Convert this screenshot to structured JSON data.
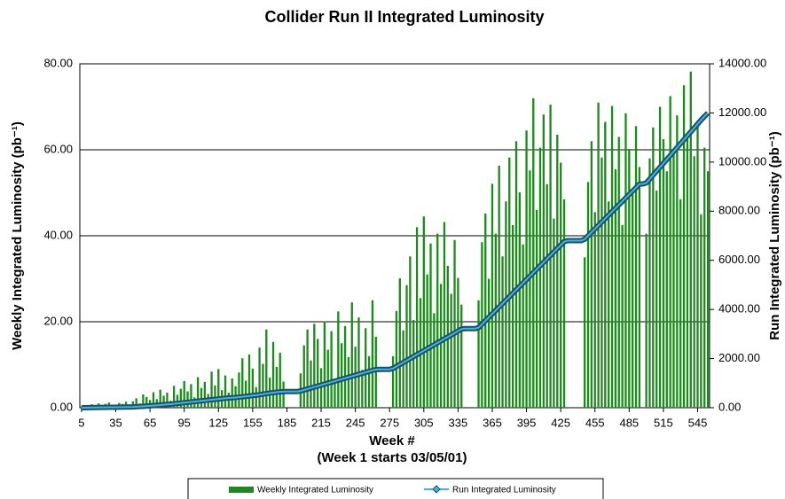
{
  "chart_data": {
    "type": "bar-line",
    "title": "Collider Run II Integrated Luminosity",
    "x_label": "Week #",
    "x_sublabel": "(Week 1 starts 03/05/01)",
    "y_label": "Weekly Integrated Luminosity (pb⁻¹)",
    "y2_label": "Run Integrated Luminosity (pb⁻¹)",
    "categories": [
      "5",
      null,
      null,
      null,
      null,
      null,
      null,
      null,
      null,
      null,
      "35",
      null,
      null,
      null,
      null,
      null,
      null,
      null,
      null,
      null,
      "65",
      null,
      null,
      null,
      null,
      null,
      null,
      null,
      null,
      null,
      "95",
      null,
      null,
      null,
      null,
      null,
      null,
      null,
      null,
      null,
      "125",
      null,
      null,
      null,
      null,
      null,
      null,
      null,
      null,
      null,
      "155",
      null,
      null,
      null,
      null,
      null,
      null,
      null,
      null,
      null,
      "185",
      null,
      null,
      null,
      null,
      null,
      null,
      null,
      null,
      null,
      "215",
      null,
      null,
      null,
      null,
      null,
      null,
      null,
      null,
      null,
      "245",
      null,
      null,
      null,
      null,
      null,
      null,
      null,
      null,
      null,
      "275",
      null,
      null,
      null,
      null,
      null,
      null,
      null,
      null,
      null,
      "305",
      null,
      null,
      null,
      null,
      null,
      null,
      null,
      null,
      null,
      "335",
      null,
      null,
      null,
      null,
      null,
      null,
      null,
      null,
      null,
      "365",
      null,
      null,
      null,
      null,
      null,
      null,
      null,
      null,
      null,
      "395",
      null,
      null,
      null,
      null,
      null,
      null,
      null,
      null,
      null,
      "425",
      null,
      null,
      null,
      null,
      null,
      null,
      null,
      null,
      null,
      "455",
      null,
      null,
      null,
      null,
      null,
      null,
      null,
      null,
      null,
      "485",
      null,
      null,
      null,
      null,
      null,
      null,
      null,
      null,
      null,
      "515",
      null,
      null,
      null,
      null,
      null,
      null,
      null,
      null,
      null,
      "545",
      null,
      null,
      null
    ],
    "series": [
      {
        "name": "Weekly Integrated Luminosity",
        "type": "bar",
        "color": "#1a8c1a",
        "values": [
          0.3,
          0.5,
          0.2,
          0.8,
          0.6,
          1.0,
          0.4,
          0.9,
          1.2,
          0.7,
          0.5,
          1.1,
          0.9,
          1.4,
          0.8,
          1.5,
          2.2,
          1.0,
          3.1,
          2.5,
          1.8,
          3.6,
          2.0,
          4.2,
          2.8,
          3.5,
          1.6,
          5.1,
          3.0,
          4.4,
          6.2,
          3.8,
          5.5,
          2.4,
          7.1,
          4.6,
          6.0,
          3.2,
          8.4,
          5.2,
          9.0,
          4.1,
          7.5,
          3.5,
          6.8,
          5.0,
          8.2,
          11.5,
          6.3,
          12.4,
          9.1,
          4.8,
          14.0,
          10.2,
          18.2,
          7.0,
          15.3,
          9.5,
          12.8,
          6.1,
          0,
          0,
          0,
          0,
          8.0,
          14.5,
          18.2,
          11.0,
          19.5,
          16.0,
          9.2,
          20.1,
          13.5,
          17.8,
          6.5,
          22.4,
          15.0,
          19.0,
          11.8,
          24.5,
          14.2,
          21.0,
          8.8,
          18.5,
          12.0,
          25.0,
          16.5,
          0,
          0,
          0,
          0,
          12.0,
          22.5,
          30.1,
          18.0,
          28.5,
          35.2,
          20.4,
          42.0,
          25.5,
          44.5,
          31.0,
          38.2,
          22.0,
          40.5,
          28.8,
          43.2,
          33.0,
          26.5,
          39.0,
          30.2,
          24.0,
          0,
          0,
          0,
          0,
          25.0,
          38.5,
          45.2,
          30.0,
          52.1,
          40.5,
          56.3,
          35.2,
          48.0,
          58.2,
          42.5,
          62.0,
          50.1,
          38.0,
          64.5,
          55.2,
          72.0,
          46.0,
          60.5,
          68.2,
          52.0,
          70.5,
          44.0,
          63.5,
          57.0,
          48.5,
          0,
          0,
          0,
          0,
          0,
          35.0,
          52.5,
          62.0,
          45.5,
          71.0,
          58.2,
          66.5,
          48.0,
          70.2,
          55.5,
          63.0,
          42.5,
          68.5,
          60.2,
          50.0,
          65.5,
          56.0,
          0,
          40.5,
          58.0,
          65.2,
          50.5,
          70.0,
          62.5,
          55.0,
          72.5,
          60.2,
          68.0,
          48.5,
          75.0,
          63.5,
          78.2,
          58.5,
          66.0,
          45.0,
          60.5,
          55.0
        ]
      },
      {
        "name": "Run Integrated Luminosity",
        "type": "line",
        "axis": "y2",
        "color": "#3fb4e0",
        "values": [
          0,
          2,
          4,
          6,
          8,
          10,
          12,
          14,
          16,
          18,
          20,
          22,
          24,
          26,
          28,
          32,
          40,
          48,
          56,
          66,
          76,
          86,
          98,
          110,
          122,
          134,
          146,
          160,
          174,
          188,
          205,
          220,
          235,
          250,
          265,
          280,
          295,
          310,
          325,
          340,
          355,
          370,
          385,
          395,
          405,
          415,
          430,
          445,
          460,
          475,
          495,
          510,
          530,
          550,
          575,
          595,
          615,
          630,
          645,
          655,
          660,
          660,
          660,
          660,
          680,
          720,
          760,
          800,
          840,
          880,
          920,
          960,
          1000,
          1040,
          1080,
          1120,
          1160,
          1200,
          1240,
          1280,
          1320,
          1360,
          1400,
          1440,
          1480,
          1520,
          1550,
          1560,
          1560,
          1560,
          1560,
          1600,
          1680,
          1760,
          1840,
          1920,
          2000,
          2080,
          2160,
          2240,
          2320,
          2400,
          2480,
          2560,
          2640,
          2720,
          2800,
          2880,
          2960,
          3040,
          3120,
          3200,
          3220,
          3220,
          3220,
          3220,
          3260,
          3400,
          3540,
          3680,
          3820,
          3960,
          4100,
          4240,
          4380,
          4520,
          4660,
          4800,
          4940,
          5080,
          5220,
          5360,
          5500,
          5640,
          5780,
          5920,
          6060,
          6200,
          6340,
          6480,
          6620,
          6760,
          6800,
          6800,
          6800,
          6800,
          6800,
          6860,
          7000,
          7140,
          7280,
          7420,
          7560,
          7700,
          7840,
          7980,
          8120,
          8260,
          8400,
          8540,
          8680,
          8820,
          8960,
          9100,
          9110,
          9150,
          9310,
          9470,
          9630,
          9790,
          9950,
          10110,
          10270,
          10430,
          10590,
          10750,
          10910,
          11070,
          11230,
          11390,
          11550,
          11710,
          11860,
          12000
        ]
      }
    ],
    "ylim": [
      0,
      80
    ],
    "yticks": [
      {
        "value": 0,
        "label": "0.00"
      },
      {
        "value": 20,
        "label": "20.00"
      },
      {
        "value": 40,
        "label": "40.00"
      },
      {
        "value": 60,
        "label": "60.00"
      },
      {
        "value": 80,
        "label": "80.00"
      }
    ],
    "y2lim": [
      0,
      14000
    ],
    "y2ticks": [
      {
        "value": 0,
        "label": "0.00"
      },
      {
        "value": 2000,
        "label": "2000.00"
      },
      {
        "value": 4000,
        "label": "4000.00"
      },
      {
        "value": 6000,
        "label": "6000.00"
      },
      {
        "value": 8000,
        "label": "8000.00"
      },
      {
        "value": 10000,
        "label": "10000.00"
      },
      {
        "value": 12000,
        "label": "12000.00"
      },
      {
        "value": 14000,
        "label": "14000.00"
      }
    ],
    "grid": true
  }
}
